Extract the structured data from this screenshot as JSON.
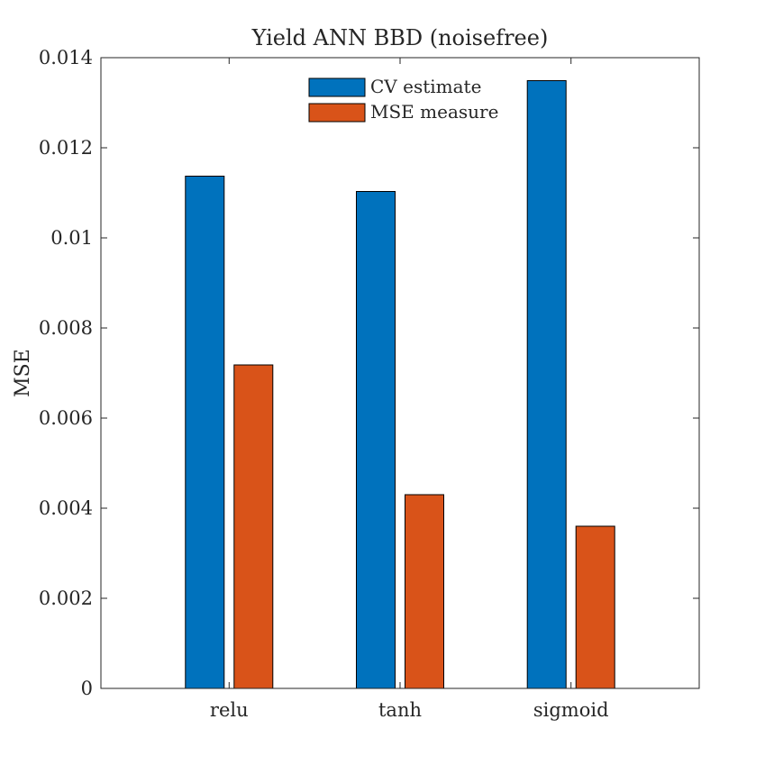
{
  "chart_data": {
    "type": "bar",
    "title": "Yield ANN BBD (noisefree)",
    "xlabel": "",
    "ylabel": "MSE",
    "categories": [
      "relu",
      "tanh",
      "sigmoid"
    ],
    "ylim": [
      0,
      0.014
    ],
    "yticks": [
      "0",
      "0.002",
      "0.004",
      "0.006",
      "0.008",
      "0.01",
      "0.012",
      "0.014"
    ],
    "ytick_values": [
      0,
      0.002,
      0.004,
      0.006,
      0.008,
      0.01,
      0.012,
      0.014
    ],
    "grid": false,
    "legend_position": "top-center",
    "series": [
      {
        "name": "CV estimate",
        "values": [
          0.01137,
          0.01103,
          0.01349
        ],
        "color": "#0072BD"
      },
      {
        "name": "MSE measure",
        "values": [
          0.00718,
          0.0043,
          0.0036
        ],
        "color": "#D95319"
      }
    ]
  }
}
